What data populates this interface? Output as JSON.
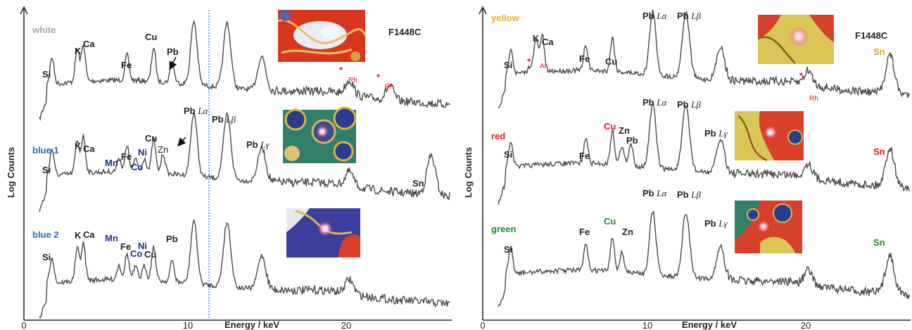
{
  "figure_id": "F1448C",
  "y_label": "Log   Counts",
  "x_label": "Energy / keV",
  "colors": {
    "spectrum": "#4a4a4a",
    "rh_marker": "#e8141c",
    "cu_red": "#e8141c",
    "cu_green": "#1b8a2a",
    "mn_co_ni": "#1f2f8f",
    "white_name": "#a8a8a8",
    "blue_name": "#1a6fc0",
    "yellow_name": "#f0a81c",
    "red_name": "#e8141c",
    "green_name": "#1b8a2a",
    "sn_yellow": "#e0a012",
    "dashed_line": "#2e7fd6"
  },
  "chart_data": [
    {
      "type": "line",
      "panel": "left",
      "x_axis": {
        "label": "Energy / keV",
        "ticks": [
          0,
          10,
          20
        ],
        "range": [
          0,
          26.5
        ]
      },
      "y_axis": {
        "label": "Log   Counts",
        "log": true,
        "tick_labels": false
      },
      "reference_line_kev": 11.5,
      "series": [
        {
          "name": "white",
          "label": "white",
          "peaks": [
            {
              "label": "Si",
              "kev": 1.74
            },
            {
              "label": "K",
              "kev": 3.31
            },
            {
              "label": "Ca",
              "kev": 3.69
            },
            {
              "label": "Fe",
              "kev": 6.4
            },
            {
              "label": "Cu",
              "kev": 8.05
            },
            {
              "label": "Pb",
              "kev": 9.2
            },
            {
              "label": "Rh",
              "kev": 20.2,
              "marker": "*"
            },
            {
              "label": "Rh",
              "kev": 22.7,
              "marker": "*"
            }
          ]
        },
        {
          "name": "blue 1",
          "label": "blue 1",
          "peaks": [
            {
              "label": "Si",
              "kev": 1.74
            },
            {
              "label": "K",
              "kev": 3.31
            },
            {
              "label": "Ca",
              "kev": 3.69
            },
            {
              "label": "Mn",
              "kev": 5.9
            },
            {
              "label": "Fe",
              "kev": 6.4
            },
            {
              "label": "Co",
              "kev": 6.93
            },
            {
              "label": "Ni",
              "kev": 7.48
            },
            {
              "label": "Cu",
              "kev": 8.05
            },
            {
              "label": "Zn",
              "kev": 8.64
            },
            {
              "label": "Pb Lα",
              "kev": 10.55
            },
            {
              "label": "Pb Lβ",
              "kev": 12.61
            },
            {
              "label": "Pb Lγ",
              "kev": 14.76
            },
            {
              "label": "Sn",
              "kev": 25.27
            }
          ]
        },
        {
          "name": "blue 2",
          "label": "blue 2",
          "peaks": [
            {
              "label": "Si",
              "kev": 1.74
            },
            {
              "label": "K",
              "kev": 3.31
            },
            {
              "label": "Ca",
              "kev": 3.69
            },
            {
              "label": "Mn",
              "kev": 5.9
            },
            {
              "label": "Fe",
              "kev": 6.4
            },
            {
              "label": "Co",
              "kev": 6.93
            },
            {
              "label": "Ni",
              "kev": 7.48
            },
            {
              "label": "Cu",
              "kev": 8.05
            },
            {
              "label": "Pb",
              "kev": 9.2
            }
          ]
        }
      ]
    },
    {
      "type": "line",
      "panel": "right",
      "x_axis": {
        "label": "Energy / keV",
        "ticks": [
          0,
          10,
          20
        ],
        "range": [
          0,
          26.5
        ]
      },
      "y_axis": {
        "label": "Log   Counts",
        "log": true,
        "tick_labels": false
      },
      "series": [
        {
          "name": "yellow",
          "label": "yellow",
          "peaks": [
            {
              "label": "Si",
              "kev": 1.74
            },
            {
              "label": "Ar",
              "kev": 2.96,
              "marker": "*"
            },
            {
              "label": "K",
              "kev": 3.31
            },
            {
              "label": "Ca",
              "kev": 3.69
            },
            {
              "label": "Fe",
              "kev": 6.4
            },
            {
              "label": "Cu",
              "kev": 8.05
            },
            {
              "label": "Pb Lα",
              "kev": 10.55
            },
            {
              "label": "Pb Lβ",
              "kev": 12.61
            },
            {
              "label": "Rh",
              "kev": 20.2,
              "marker": "*"
            },
            {
              "label": "Sn",
              "kev": 25.27
            }
          ]
        },
        {
          "name": "red",
          "label": "red",
          "peaks": [
            {
              "label": "Si",
              "kev": 1.74
            },
            {
              "label": "Fe",
              "kev": 6.4
            },
            {
              "label": "Cu",
              "kev": 8.05
            },
            {
              "label": "Zn",
              "kev": 8.64
            },
            {
              "label": "Pb",
              "kev": 9.2
            },
            {
              "label": "Pb Lα",
              "kev": 10.55
            },
            {
              "label": "Pb Lβ",
              "kev": 12.61
            },
            {
              "label": "Pb Lγ",
              "kev": 14.76
            },
            {
              "label": "Sn",
              "kev": 25.27
            }
          ]
        },
        {
          "name": "green",
          "label": "green",
          "peaks": [
            {
              "label": "Si",
              "kev": 1.74
            },
            {
              "label": "Fe",
              "kev": 6.4
            },
            {
              "label": "Cu",
              "kev": 8.05
            },
            {
              "label": "Zn",
              "kev": 8.64
            },
            {
              "label": "Pb Lα",
              "kev": 10.55
            },
            {
              "label": "Pb Lβ",
              "kev": 12.61
            },
            {
              "label": "Pb Lγ",
              "kev": 14.76
            },
            {
              "label": "Sn",
              "kev": 25.27
            }
          ]
        }
      ]
    }
  ],
  "text": {
    "white": "white",
    "blue1": "blue 1",
    "blue2": "blue 2",
    "yellow": "yellow",
    "red": "red",
    "green": "green",
    "Si": "Si",
    "K": "K",
    "Ca": "Ca",
    "Fe": "Fe",
    "Cu": "Cu",
    "Pb": "Pb",
    "Zn": "Zn",
    "Mn": "Mn",
    "Co": "Co",
    "Ni": "Ni",
    "Sn": "Sn",
    "Rh": "Rh",
    "Ar": "Ar",
    "star": "*",
    "PbLa_pre": "Pb ",
    "PbLa_it": "Lα",
    "PbLb_it": "Lβ",
    "PbLg_it": "Lγ",
    "t0": "0",
    "t10": "10",
    "t20": "20"
  },
  "photos": [
    {
      "name": "photo-white",
      "scene": "red enamel with white patch and gold wires"
    },
    {
      "name": "photo-blue1",
      "scene": "blue and green enamel dots with laser spot"
    },
    {
      "name": "photo-blue2",
      "scene": "blue enamel with laser spot"
    },
    {
      "name": "photo-yellow",
      "scene": "yellow enamel with laser spot"
    },
    {
      "name": "photo-red",
      "scene": "red enamel with laser spot"
    },
    {
      "name": "photo-green",
      "scene": "green and red enamel with laser spot"
    }
  ]
}
